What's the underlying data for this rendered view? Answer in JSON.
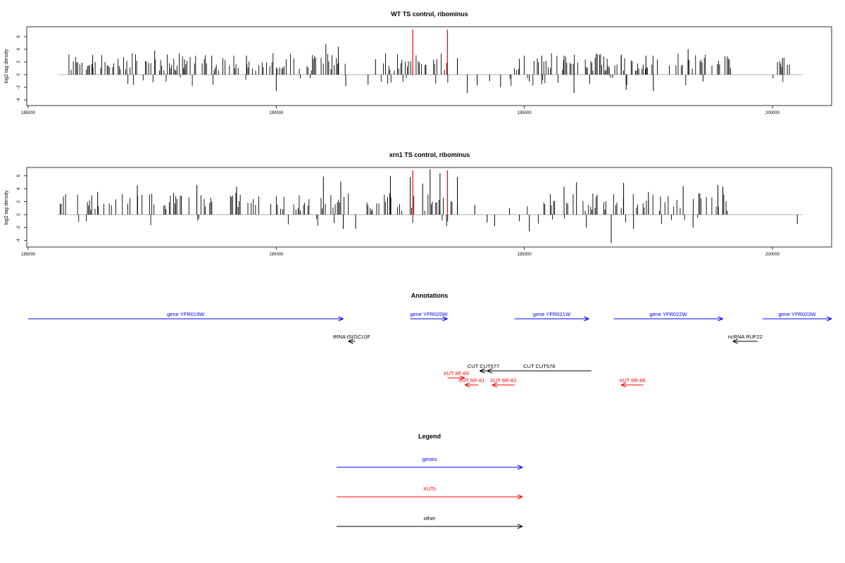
{
  "colors": {
    "gene": "#0000ff",
    "xut": "#ff0000",
    "other": "#000000",
    "marker": "#ff0000",
    "baseline": "#999999"
  },
  "chart_data": [
    {
      "type": "bar",
      "title": "WT TS control, ribominus",
      "ylabel": "log2 tag density",
      "xlim": [
        185000,
        201200
      ],
      "ylim": [
        -5,
        7.5
      ],
      "x_ticks": [
        185000,
        190000,
        195000,
        200000
      ],
      "x_tick_labels": [
        "185000",
        "190000",
        "195000",
        "200000"
      ],
      "y_ticks": [
        -4,
        -2,
        0,
        2,
        4,
        6
      ],
      "y_tick_labels": [
        "-4",
        "-2",
        "0",
        "2",
        "4",
        "6"
      ],
      "baseline_range": [
        185600,
        200600
      ],
      "markers": [
        192750,
        193450
      ],
      "density": {
        "range": [
          185800,
          200400
        ],
        "seed": 7,
        "noise": 0.25,
        "gaps": [
          [
            191400,
            192100
          ],
          [
            193500,
            194700
          ],
          [
            199200,
            200000
          ]
        ]
      },
      "bars": [
        {
          "x": 186300,
          "y": 3.1
        },
        {
          "x": 187550,
          "y": 3.8
        },
        {
          "x": 188150,
          "y": 2.4
        },
        {
          "x": 188700,
          "y": 3.0
        },
        {
          "x": 189400,
          "y": 3.0
        },
        {
          "x": 190000,
          "y": -2.6
        },
        {
          "x": 191000,
          "y": 4.8
        },
        {
          "x": 191250,
          "y": 4.4
        },
        {
          "x": 191400,
          "y": -1.8
        },
        {
          "x": 191850,
          "y": -1.6
        },
        {
          "x": 192000,
          "y": 2.4
        },
        {
          "x": 193000,
          "y": 1.5
        },
        {
          "x": 193650,
          "y": 2.6
        },
        {
          "x": 193850,
          "y": -2.9
        },
        {
          "x": 194050,
          "y": -1.7
        },
        {
          "x": 194300,
          "y": -1.0
        },
        {
          "x": 194520,
          "y": -2.0
        },
        {
          "x": 194900,
          "y": 2.5
        },
        {
          "x": 195100,
          "y": -1.1
        },
        {
          "x": 195350,
          "y": 3.0
        },
        {
          "x": 195800,
          "y": 3.0
        },
        {
          "x": 196000,
          "y": -2.9
        },
        {
          "x": 196250,
          "y": 1.2
        },
        {
          "x": 196950,
          "y": 3.0
        },
        {
          "x": 197050,
          "y": -2.4
        },
        {
          "x": 197450,
          "y": 3.0
        },
        {
          "x": 197600,
          "y": -2.6
        },
        {
          "x": 198300,
          "y": 4.0
        },
        {
          "x": 198600,
          "y": -1.1
        },
        {
          "x": 200200,
          "y": 2.6
        },
        {
          "x": 200300,
          "y": 1.5
        }
      ]
    },
    {
      "type": "bar",
      "title": "xrn1 TS control, ribominus",
      "ylabel": "log2 tag density",
      "xlim": [
        185000,
        201200
      ],
      "ylim": [
        -5,
        7.5
      ],
      "x_ticks": [
        185000,
        190000,
        195000,
        200000
      ],
      "x_tick_labels": [
        "185000",
        "190000",
        "195000",
        "200000"
      ],
      "y_ticks": [
        -4,
        -2,
        0,
        2,
        4,
        6
      ],
      "y_tick_labels": [
        "-4",
        "-2",
        "0",
        "2",
        "4",
        "6"
      ],
      "baseline_range": [
        185600,
        200600
      ],
      "markers": [
        192750,
        193450
      ],
      "density": {
        "range": [
          185600,
          199100
        ],
        "seed": 3,
        "noise": 0.4,
        "gaps": [
          [
            191500,
            191700
          ],
          [
            193800,
            194900
          ]
        ]
      },
      "bars": [
        {
          "x": 186400,
          "y": 3.5
        },
        {
          "x": 187200,
          "y": 4.5
        },
        {
          "x": 188400,
          "y": 4.6
        },
        {
          "x": 189200,
          "y": 4.3
        },
        {
          "x": 190950,
          "y": 5.9
        },
        {
          "x": 191300,
          "y": 5.1
        },
        {
          "x": 191350,
          "y": -2.2
        },
        {
          "x": 191600,
          "y": -2.2
        },
        {
          "x": 192300,
          "y": 6.0
        },
        {
          "x": 192700,
          "y": 5.8
        },
        {
          "x": 192950,
          "y": 4.8
        },
        {
          "x": 193100,
          "y": 7.0
        },
        {
          "x": 193300,
          "y": 6.4
        },
        {
          "x": 193650,
          "y": 5.8
        },
        {
          "x": 194000,
          "y": 1.5
        },
        {
          "x": 194250,
          "y": -1.2
        },
        {
          "x": 194400,
          "y": -1.8
        },
        {
          "x": 194700,
          "y": 1.0
        },
        {
          "x": 194900,
          "y": -1.0
        },
        {
          "x": 195100,
          "y": -2.6
        },
        {
          "x": 195800,
          "y": 4.3
        },
        {
          "x": 196050,
          "y": 5.0
        },
        {
          "x": 196250,
          "y": -2.0
        },
        {
          "x": 196750,
          "y": -4.4
        },
        {
          "x": 197000,
          "y": 4.9
        },
        {
          "x": 197200,
          "y": -2.2
        },
        {
          "x": 197500,
          "y": 3.5
        },
        {
          "x": 198200,
          "y": 4.4
        },
        {
          "x": 198400,
          "y": -2.0
        },
        {
          "x": 198900,
          "y": 4.6
        },
        {
          "x": 199000,
          "y": 4.3
        },
        {
          "x": 200500,
          "y": -1.4
        }
      ]
    }
  ],
  "annotations": {
    "title": "Annotations",
    "features": [
      {
        "label": "gene YFR019W",
        "kind": "gene",
        "strand": "+",
        "start": 185000,
        "end": 191350,
        "row": 0
      },
      {
        "label": "gene YFR020W",
        "kind": "gene",
        "strand": "+",
        "start": 192700,
        "end": 193450,
        "row": 0
      },
      {
        "label": "gene YFR021W",
        "kind": "gene",
        "strand": "+",
        "start": 194800,
        "end": 196300,
        "row": 0
      },
      {
        "label": "gene YFR022W",
        "kind": "gene",
        "strand": "+",
        "start": 196800,
        "end": 199000,
        "row": 0
      },
      {
        "label": "gene YFR023W",
        "kind": "gene",
        "strand": "+",
        "start": 199800,
        "end": 201200,
        "row": 0
      },
      {
        "label": "tRNA tS(GCU)F",
        "kind": "other",
        "strand": "-",
        "start": 191450,
        "end": 191550,
        "row": 1
      },
      {
        "label": "ncRNA RUF22",
        "kind": "other",
        "strand": "-",
        "start": 199200,
        "end": 199700,
        "row": 1
      },
      {
        "label": "CUT CUT577",
        "kind": "other",
        "strand": "-",
        "start": 194100,
        "end": 194250,
        "row": 2
      },
      {
        "label": "CUT CUT578",
        "kind": "other",
        "strand": "-",
        "start": 194250,
        "end": 196350,
        "row": 2
      },
      {
        "label": "XUT 6F-83",
        "kind": "xut",
        "strand": "+",
        "start": 193450,
        "end": 193800,
        "row": 3
      },
      {
        "label": "XUT 6R-81",
        "kind": "xut",
        "strand": "-",
        "start": 193800,
        "end": 194070,
        "row": 4
      },
      {
        "label": "XUT 6R-82",
        "kind": "xut",
        "strand": "-",
        "start": 194350,
        "end": 194800,
        "row": 4
      },
      {
        "label": "XUT 6R-86",
        "kind": "xut",
        "strand": "-",
        "start": 196950,
        "end": 197400,
        "row": 4
      }
    ]
  },
  "legend": {
    "title": "Legend",
    "items": [
      {
        "label": "genes",
        "kind": "gene"
      },
      {
        "label": "XUTs",
        "kind": "xut"
      },
      {
        "label": "other",
        "kind": "other"
      }
    ]
  }
}
